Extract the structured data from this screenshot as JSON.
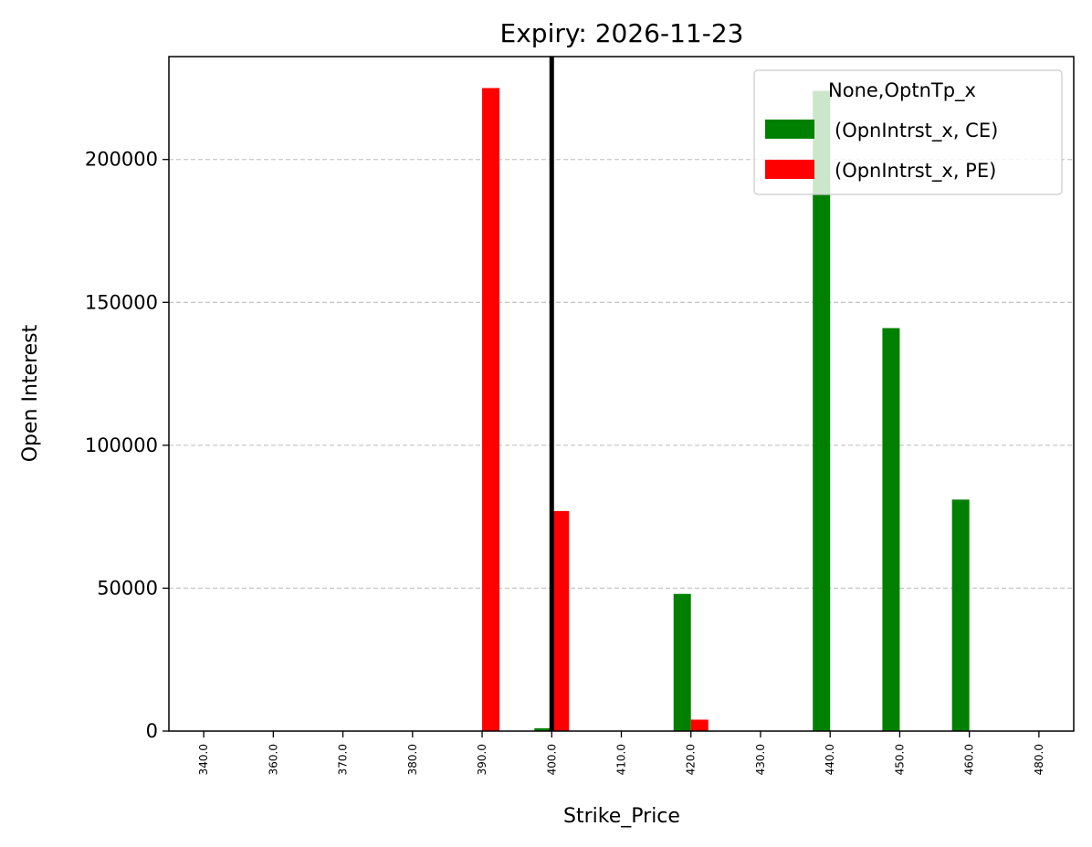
{
  "chart_data": {
    "type": "bar",
    "title": "Expiry: 2026-11-23",
    "xlabel": "Strike_Price",
    "ylabel": "Open Interest",
    "categories": [
      "340.0",
      "360.0",
      "370.0",
      "380.0",
      "390.0",
      "400.0",
      "410.0",
      "420.0",
      "430.0",
      "440.0",
      "450.0",
      "460.0",
      "480.0"
    ],
    "series": [
      {
        "name": "(OpnIntrst_x, CE)",
        "color": "#008000",
        "values": [
          0,
          0,
          0,
          0,
          0,
          1000,
          0,
          48000,
          0,
          224000,
          141000,
          81000,
          0
        ]
      },
      {
        "name": "(OpnIntrst_x, PE)",
        "color": "#ff0000",
        "values": [
          0,
          0,
          0,
          0,
          225000,
          77000,
          0,
          4000,
          0,
          0,
          0,
          0,
          0
        ]
      }
    ],
    "ylim": [
      0,
      236000
    ],
    "yticks": [
      0,
      50000,
      100000,
      150000,
      200000
    ],
    "ytick_labels": [
      "0",
      "50000",
      "100000",
      "150000",
      "200000"
    ],
    "grid": {
      "y": true,
      "x": false,
      "style": "dashed"
    },
    "vline": {
      "category": "400.0",
      "color": "#000000"
    },
    "legend": {
      "title": "None,OptnTp_x",
      "position": "top-right"
    }
  }
}
